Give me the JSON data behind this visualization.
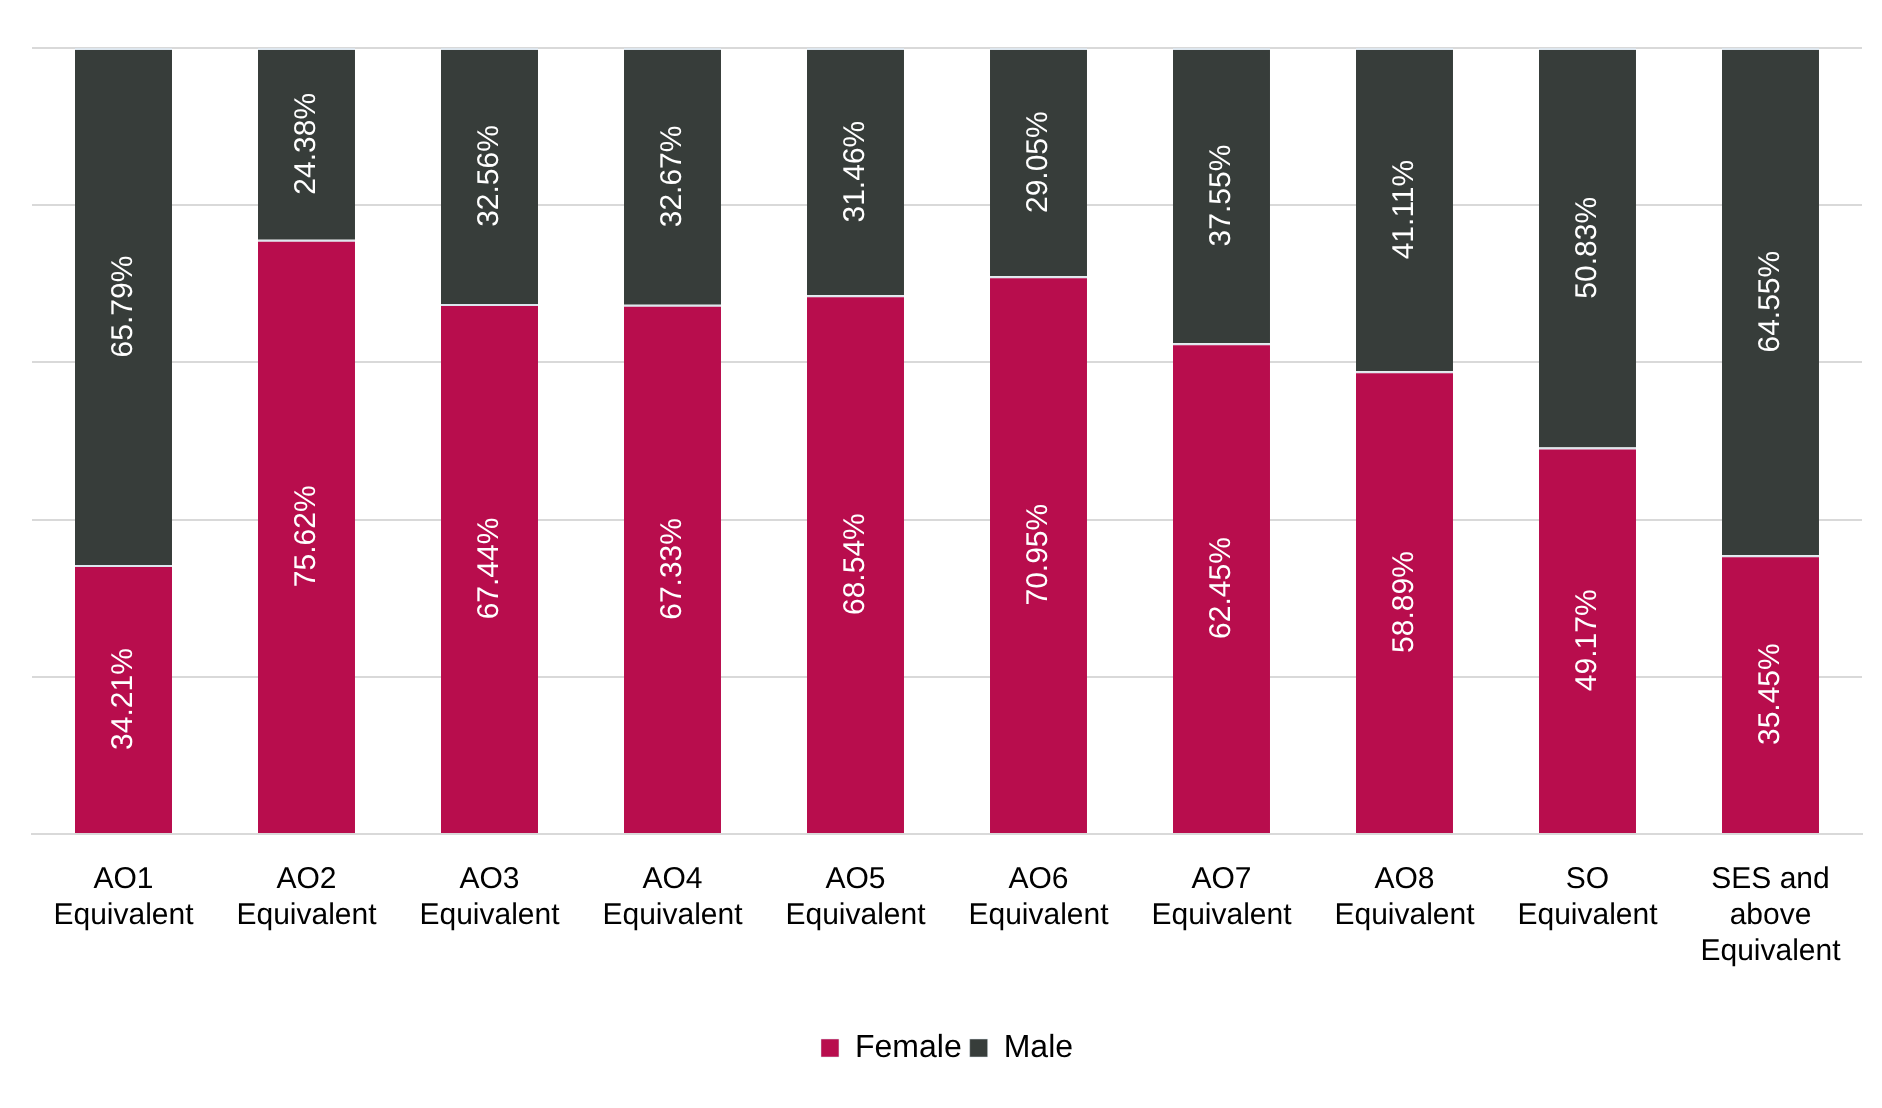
{
  "chart_data": {
    "type": "bar",
    "stacked": true,
    "categories": [
      "AO1 Equivalent",
      "AO2 Equivalent",
      "AO3 Equivalent",
      "AO4 Equivalent",
      "AO5 Equivalent",
      "AO6 Equivalent",
      "AO7 Equivalent",
      "AO8 Equivalent",
      "SO Equivalent",
      "SES and above Equivalent"
    ],
    "series": [
      {
        "name": "Female",
        "color": "#b80d4d",
        "values": [
          34.21,
          75.62,
          67.44,
          67.33,
          68.54,
          70.95,
          62.45,
          58.89,
          49.17,
          35.45
        ],
        "value_labels": [
          "34.21%",
          "75.62%",
          "67.44%",
          "67.33%",
          "68.54%",
          "70.95%",
          "62.45%",
          "58.89%",
          "49.17%",
          "35.45%"
        ]
      },
      {
        "name": "Male",
        "color": "#373d3a",
        "values": [
          65.79,
          24.38,
          32.56,
          32.67,
          31.46,
          29.05,
          37.55,
          41.11,
          50.83,
          64.55
        ],
        "value_labels": [
          "65.79%",
          "24.38%",
          "32.56%",
          "32.67%",
          "31.46%",
          "29.05%",
          "37.55%",
          "41.11%",
          "50.83%",
          "64.55%"
        ]
      }
    ],
    "ylim": [
      0,
      100
    ],
    "yticks": [
      0,
      20,
      40,
      60,
      80,
      100
    ],
    "grid": "y",
    "tick_labels": "x",
    "legend": "bottom"
  }
}
